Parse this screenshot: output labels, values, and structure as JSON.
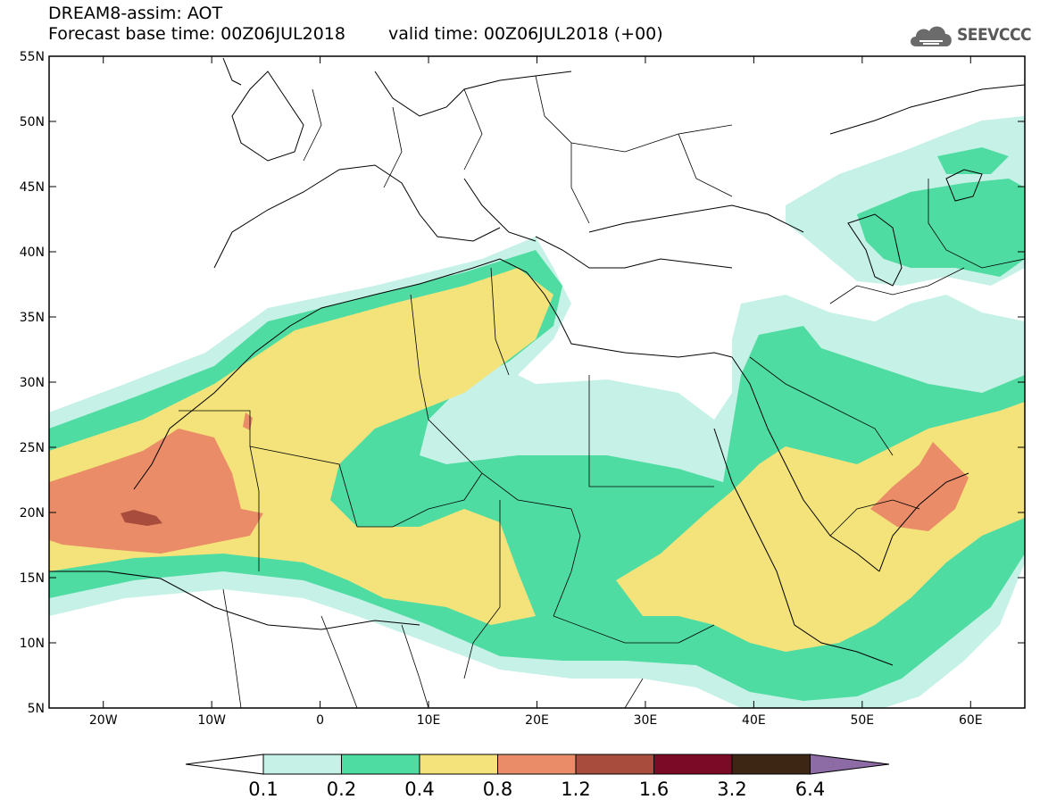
{
  "header": {
    "title": "DREAM8-assim: AOT",
    "base_time": "Forecast base time: 00Z06JUL2018",
    "valid_time": "valid time: 00Z06JUL2018 (+00)"
  },
  "logo": {
    "text": "SEEVCCC",
    "icon": "cloud-icon"
  },
  "map": {
    "lon_range": [
      -25,
      65
    ],
    "lat_range": [
      5,
      55
    ],
    "lat_labels": [
      "55N",
      "50N",
      "45N",
      "40N",
      "35N",
      "30N",
      "25N",
      "20N",
      "15N",
      "10N",
      "5N"
    ],
    "lon_labels": [
      "20W",
      "10W",
      "0",
      "10E",
      "20E",
      "30E",
      "40E",
      "50E",
      "60E"
    ]
  },
  "colorbar": {
    "levels": [
      "0.1",
      "0.2",
      "0.4",
      "0.8",
      "1.2",
      "1.6",
      "3.2",
      "6.4"
    ],
    "colors": [
      "#c6f1e6",
      "#4fdca3",
      "#f3e37a",
      "#e98c67",
      "#a84c3d",
      "#7a0a25",
      "#3d2614",
      "#8d6ba5"
    ],
    "under_color": "#ffffff"
  },
  "colors": {
    "aot_0_1": "#c6f1e6",
    "aot_0_2": "#4fdca3",
    "aot_0_4": "#f3e37a",
    "aot_0_8": "#e98c67",
    "aot_1_2": "#a84c3d"
  }
}
